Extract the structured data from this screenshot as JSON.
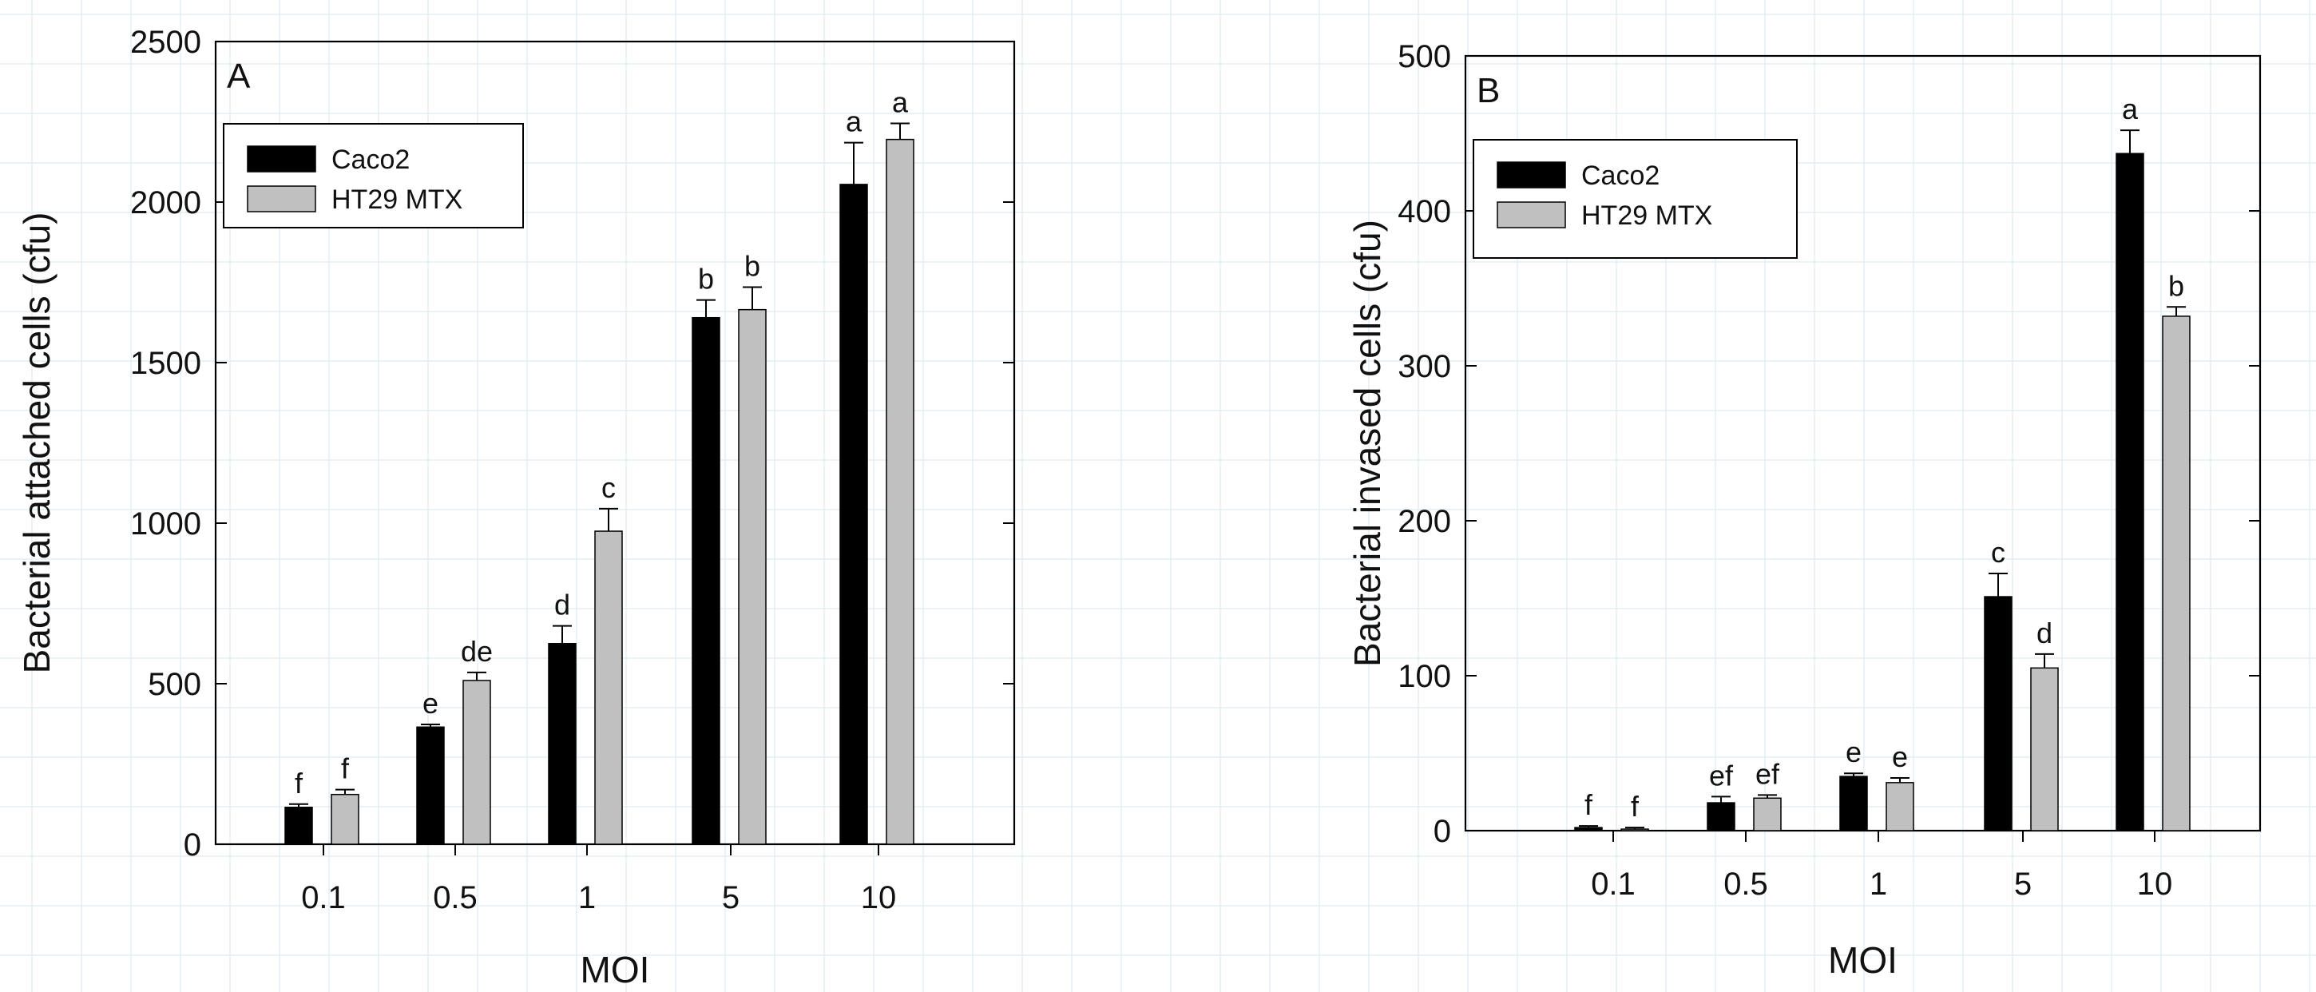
{
  "chart_data": [
    {
      "type": "bar",
      "panel": "A",
      "xlabel": "MOI",
      "ylabel": "Bacterial attached cells (cfu)",
      "categories": [
        "0.1",
        "0.5",
        "1",
        "5",
        "10"
      ],
      "ylim": [
        0,
        2500
      ],
      "yticks": [
        0,
        500,
        1000,
        1500,
        2000,
        2500
      ],
      "grid": "light background grid",
      "legend_position": "top-left",
      "series": [
        {
          "name": "Caco2",
          "color": "#000000",
          "values": [
            115,
            365,
            625,
            1640,
            2055
          ],
          "errors": [
            10,
            8,
            55,
            55,
            130
          ],
          "labels": [
            "f",
            "e",
            "d",
            "b",
            "a"
          ]
        },
        {
          "name": "HT29  MTX",
          "color": "#c0c0c0",
          "values": [
            155,
            510,
            975,
            1665,
            2195
          ],
          "errors": [
            15,
            25,
            70,
            70,
            50
          ],
          "labels": [
            "f",
            "de",
            "c",
            "b",
            "a"
          ]
        }
      ]
    },
    {
      "type": "bar",
      "panel": "B",
      "xlabel": "MOI",
      "ylabel": "Bacterial invased cells (cfu)",
      "categories": [
        "0.1",
        "0.5",
        "1",
        "5",
        "10"
      ],
      "ylim": [
        0,
        500
      ],
      "yticks": [
        0,
        100,
        200,
        300,
        400,
        500
      ],
      "grid": "light background grid",
      "legend_position": "top-left",
      "series": [
        {
          "name": "Caco2",
          "color": "#000000",
          "values": [
            2,
            18,
            35,
            151,
            437
          ],
          "errors": [
            1,
            4,
            2,
            15,
            15
          ],
          "labels": [
            "f",
            "ef",
            "e",
            "c",
            "a"
          ]
        },
        {
          "name": "HT29 MTX",
          "color": "#c0c0c0",
          "values": [
            1,
            21,
            31,
            105,
            332
          ],
          "errors": [
            1,
            2,
            3,
            9,
            6
          ],
          "labels": [
            "f",
            "ef",
            "e",
            "d",
            "b"
          ]
        }
      ]
    }
  ]
}
